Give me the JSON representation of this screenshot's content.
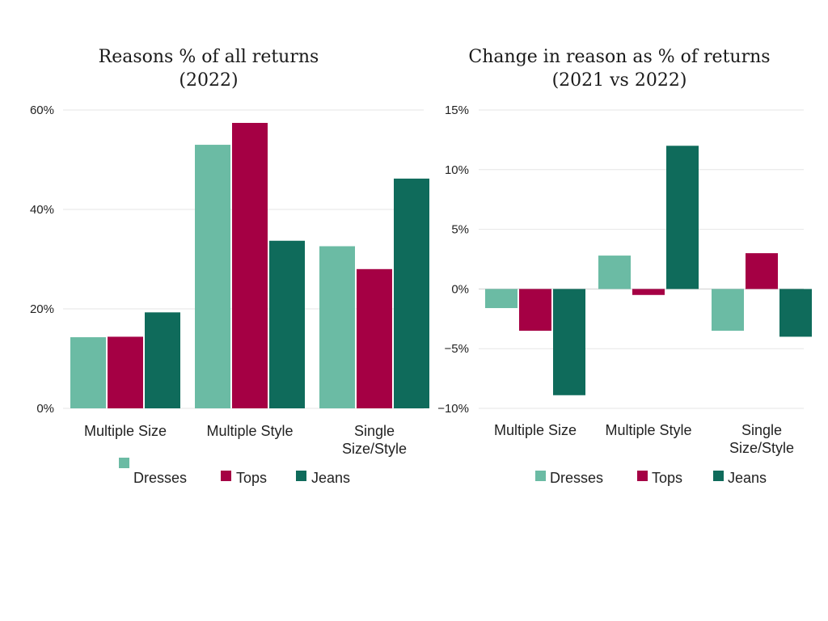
{
  "colors": {
    "Dresses": "#6bbba4",
    "Tops": "#a50044",
    "Jeans": "#0f6b5b"
  },
  "chart_data": [
    {
      "type": "bar",
      "title_lines": [
        "Reasons % of all returns",
        "(2022)"
      ],
      "categories": [
        "Multiple Size",
        "Multiple Style",
        "Single Size/Style"
      ],
      "category_label_lines": [
        [
          "Multiple Size"
        ],
        [
          "Multiple Style"
        ],
        [
          "Single",
          "Size/Style"
        ]
      ],
      "series": [
        {
          "name": "Dresses",
          "values": [
            14.3,
            53.0,
            32.6
          ]
        },
        {
          "name": "Tops",
          "values": [
            14.4,
            57.4,
            28.0
          ]
        },
        {
          "name": "Jeans",
          "values": [
            19.3,
            33.7,
            46.2
          ]
        }
      ],
      "ylim": [
        0,
        60
      ],
      "yticks": [
        0,
        20,
        40,
        60
      ],
      "ytick_labels": [
        "0%",
        "20%",
        "40%",
        "60%"
      ],
      "grid": true,
      "legend": {
        "placement": "bottom",
        "entries": [
          "Dresses",
          "Tops",
          "Jeans"
        ]
      }
    },
    {
      "type": "bar",
      "title_lines": [
        "Change in reason as % of returns",
        "(2021 vs 2022)"
      ],
      "categories": [
        "Multiple Size",
        "Multiple Style",
        "Single Size/Style"
      ],
      "category_label_lines": [
        [
          "Multiple Size"
        ],
        [
          "Multiple Style"
        ],
        [
          "Single",
          "Size/Style"
        ]
      ],
      "series": [
        {
          "name": "Dresses",
          "values": [
            -1.6,
            2.8,
            -3.5
          ]
        },
        {
          "name": "Tops",
          "values": [
            -3.5,
            -0.5,
            3.0
          ]
        },
        {
          "name": "Jeans",
          "values": [
            -8.9,
            12.0,
            -4.0
          ]
        }
      ],
      "ylim": [
        -10,
        15
      ],
      "yticks": [
        -10,
        -5,
        0,
        5,
        10,
        15
      ],
      "ytick_labels": [
        "−10%",
        "−5%",
        "0%",
        "5%",
        "10%",
        "15%"
      ],
      "grid": true,
      "legend": {
        "placement": "bottom",
        "entries": [
          "Dresses",
          "Tops",
          "Jeans"
        ]
      }
    }
  ]
}
